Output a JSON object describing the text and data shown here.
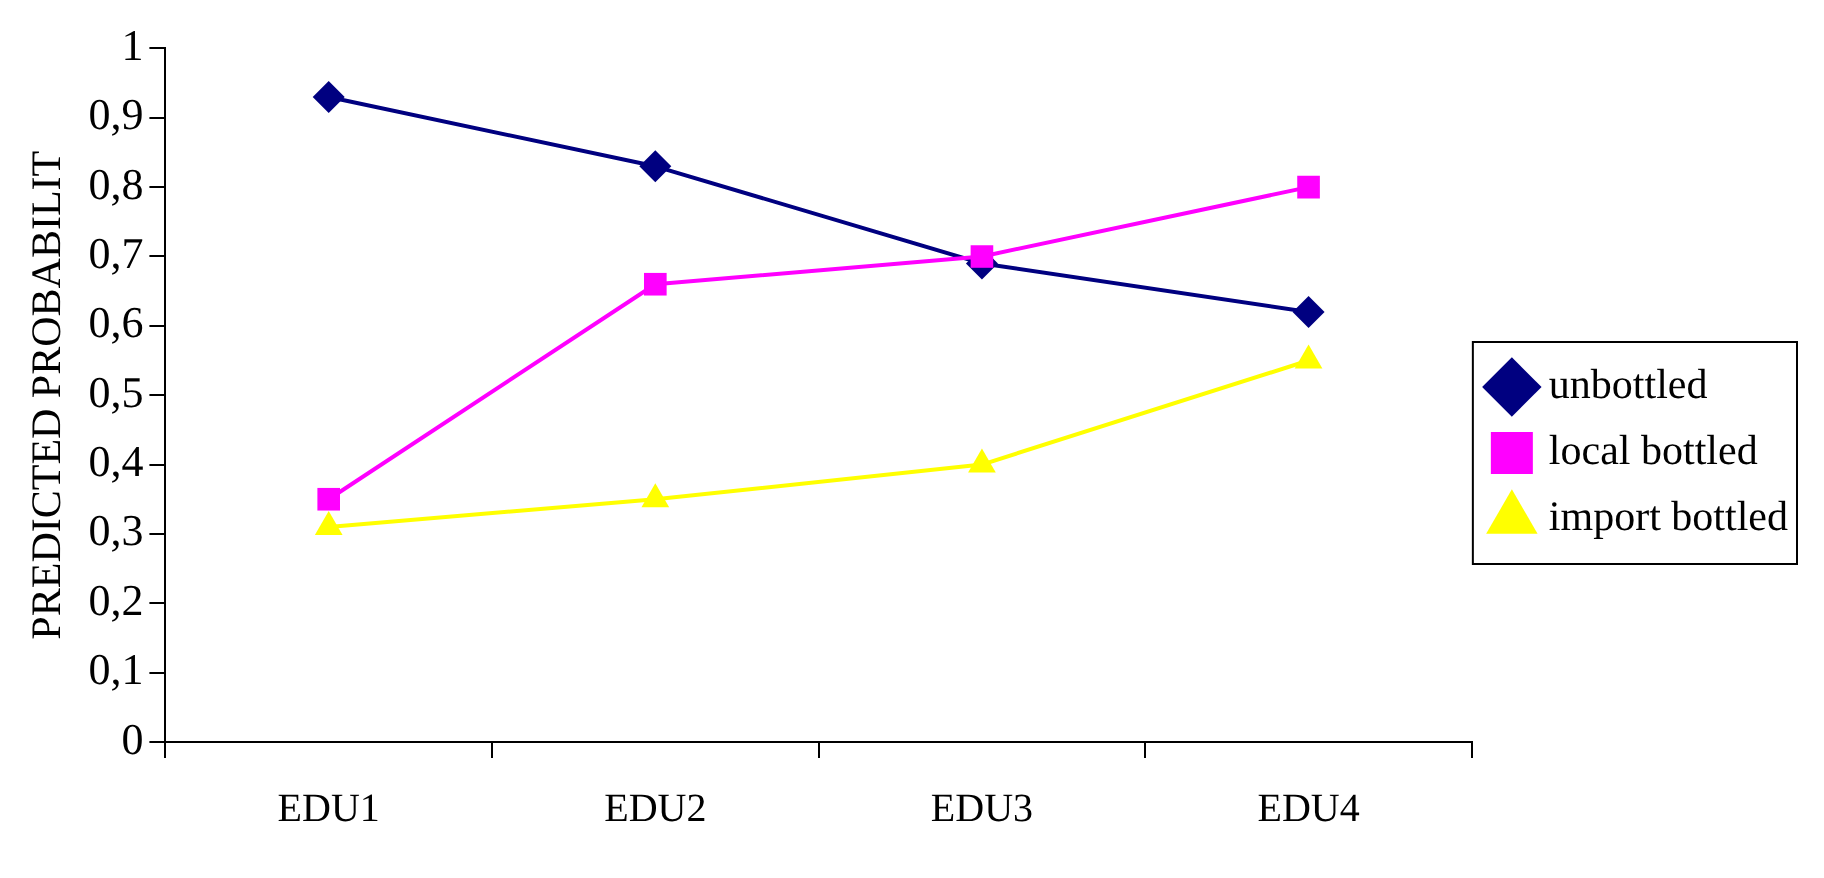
{
  "chart_data": {
    "type": "line",
    "ylabel": "PREDICTED PROBABILIT",
    "categories": [
      "EDU1",
      "EDU2",
      "EDU3",
      "EDU4"
    ],
    "series": [
      {
        "name": "unbottled",
        "color": "#000080",
        "marker": "diamond",
        "values": [
          0.93,
          0.83,
          0.69,
          0.62
        ]
      },
      {
        "name": "local bottled",
        "color": "#ff00ff",
        "marker": "square",
        "values": [
          0.35,
          0.66,
          0.7,
          0.8
        ]
      },
      {
        "name": "import bottled",
        "color": "#ffff00",
        "marker": "triangle",
        "values": [
          0.31,
          0.35,
          0.4,
          0.55
        ]
      }
    ],
    "ylim": [
      0,
      1
    ],
    "yticks": [
      {
        "value": 0,
        "label": "0"
      },
      {
        "value": 0.1,
        "label": "0,1"
      },
      {
        "value": 0.2,
        "label": "0,2"
      },
      {
        "value": 0.3,
        "label": "0,3"
      },
      {
        "value": 0.4,
        "label": "0,4"
      },
      {
        "value": 0.5,
        "label": "0,5"
      },
      {
        "value": 0.6,
        "label": "0,6"
      },
      {
        "value": 0.7,
        "label": "0,7"
      },
      {
        "value": 0.8,
        "label": "0,8"
      },
      {
        "value": 0.9,
        "label": "0,9"
      },
      {
        "value": 1,
        "label": "1"
      }
    ],
    "grid": false,
    "legend": "right",
    "line_style": "solid"
  }
}
